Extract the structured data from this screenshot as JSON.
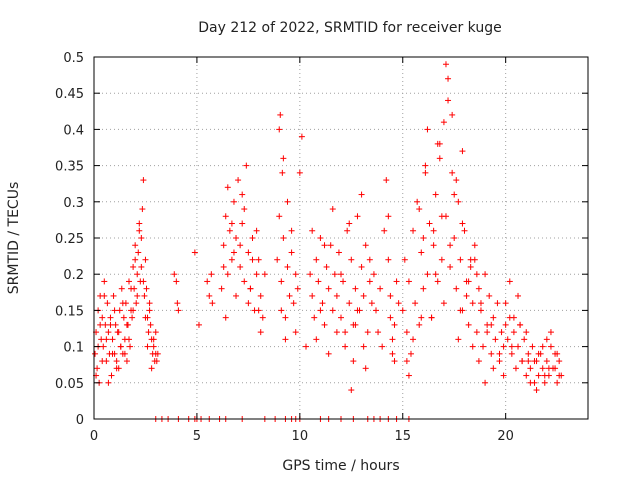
{
  "chart_data": {
    "type": "scatter",
    "title": "Day 212 of 2022, SRMTID for receiver kuge",
    "xlabel": "GPS time / hours",
    "ylabel": "SRMTID / TECUs",
    "xlim": [
      0,
      24
    ],
    "ylim": [
      0,
      0.5
    ],
    "xticks": [
      0,
      5,
      10,
      15,
      20
    ],
    "yticks": [
      0,
      0.05,
      0.1,
      0.15,
      0.2,
      0.25,
      0.3,
      0.35,
      0.4,
      0.45,
      0.5
    ],
    "xtick_labels": [
      "0",
      "5",
      "10",
      "15",
      "20"
    ],
    "ytick_labels": [
      "0",
      "0.05",
      "0.1",
      "0.15",
      "0.2",
      "0.25",
      "0.3",
      "0.35",
      "0.4",
      "0.45",
      "0.5"
    ],
    "grid": true,
    "marker": "+",
    "color": "#ff0000",
    "series": [
      {
        "name": "SRMTID",
        "x": [
          0.05,
          0.1,
          0.15,
          0.2,
          0.25,
          0.3,
          0.35,
          0.4,
          0.45,
          0.5,
          0.55,
          0.6,
          0.65,
          0.7,
          0.75,
          0.8,
          0.85,
          0.9,
          0.95,
          1.0,
          1.05,
          1.1,
          1.15,
          1.2,
          1.25,
          1.3,
          1.35,
          1.4,
          1.45,
          1.5,
          1.55,
          1.6,
          1.65,
          1.7,
          1.75,
          1.8,
          1.85,
          1.9,
          1.95,
          2.0,
          2.05,
          2.1,
          2.15,
          2.2,
          2.25,
          2.3,
          2.35,
          2.4,
          2.45,
          2.5,
          2.55,
          2.6,
          2.65,
          2.7,
          2.75,
          2.8,
          2.85,
          2.9,
          2.95,
          3.0,
          3.05,
          3.1,
          0.1,
          0.2,
          0.3,
          0.4,
          0.5,
          0.6,
          0.7,
          0.8,
          0.9,
          1.0,
          1.1,
          1.2,
          1.3,
          1.4,
          1.5,
          1.6,
          1.7,
          1.8,
          1.9,
          2.0,
          2.1,
          2.2,
          2.3,
          2.4,
          2.5,
          2.6,
          2.7,
          2.8,
          2.9,
          3.0,
          3.9,
          4.0,
          4.05,
          4.1,
          4.9,
          5.1,
          5.5,
          5.6,
          5.7,
          5.75,
          6.2,
          6.3,
          6.4,
          6.5,
          6.6,
          6.7,
          6.8,
          6.9,
          7.0,
          7.1,
          7.2,
          7.3,
          7.4,
          7.5,
          7.6,
          7.7,
          7.8,
          7.9,
          8.0,
          8.1,
          8.2,
          8.3,
          6.3,
          6.5,
          6.7,
          6.9,
          7.1,
          7.3,
          7.5,
          7.7,
          7.9,
          8.1,
          6.4,
          6.8,
          7.2,
          7.6,
          8.0,
          8.9,
          9.0,
          9.1,
          9.2,
          9.3,
          9.4,
          9.5,
          9.6,
          9.7,
          9.8,
          9.9,
          9.0,
          9.2,
          9.4,
          9.6,
          9.8,
          9.1,
          9.3,
          9.05,
          9.15,
          10.0,
          10.1,
          10.3,
          10.5,
          10.6,
          10.7,
          10.8,
          10.9,
          11.0,
          11.1,
          11.2,
          11.3,
          11.4,
          11.5,
          11.6,
          11.7,
          11.8,
          11.9,
          12.0,
          12.1,
          12.2,
          12.3,
          12.4,
          12.5,
          12.6,
          12.7,
          12.8,
          12.9,
          13.0,
          13.1,
          13.2,
          13.3,
          13.4,
          13.5,
          10.6,
          10.8,
          11.0,
          11.2,
          11.4,
          11.6,
          11.8,
          12.0,
          12.2,
          12.4,
          12.6,
          12.8,
          13.0,
          13.2,
          13.4,
          12.5,
          13.1,
          12.7,
          13.6,
          13.7,
          13.8,
          13.9,
          14.0,
          14.1,
          14.2,
          14.3,
          14.4,
          14.5,
          14.6,
          14.7,
          14.8,
          14.3,
          14.5,
          14.4,
          14.6,
          15.0,
          15.1,
          15.2,
          15.3,
          15.4,
          15.5,
          15.6,
          15.7,
          15.8,
          15.9,
          16.0,
          16.1,
          16.2,
          16.3,
          16.4,
          16.5,
          16.6,
          16.7,
          16.8,
          16.9,
          17.0,
          17.1,
          17.2,
          17.3,
          17.4,
          17.5,
          17.6,
          17.7,
          17.8,
          17.9,
          18.0,
          18.1,
          18.2,
          18.3,
          18.4,
          18.5,
          18.6,
          18.7,
          18.8,
          18.9,
          19.0,
          19.1,
          19.2,
          19.3,
          19.4,
          19.5,
          19.6,
          19.7,
          19.8,
          19.9,
          20.0,
          15.2,
          15.5,
          15.8,
          16.1,
          16.4,
          16.7,
          17.0,
          17.3,
          17.6,
          17.9,
          18.2,
          18.5,
          18.8,
          19.1,
          19.4,
          19.7,
          16.2,
          16.8,
          17.1,
          17.2,
          17.4,
          17.9,
          18.3,
          16.5,
          17.5,
          18.6,
          15.3,
          15.9,
          16.6,
          17.7,
          18.1,
          18.7,
          19.3,
          19.9,
          16.0,
          16.9,
          17.8,
          18.4,
          19.0,
          20.0,
          20.1,
          20.2,
          20.3,
          20.4,
          20.5,
          20.6,
          20.7,
          20.8,
          20.9,
          21.0,
          21.1,
          21.2,
          21.3,
          21.4,
          21.5,
          21.6,
          21.7,
          21.8,
          21.9,
          22.0,
          22.1,
          22.2,
          22.3,
          22.4,
          22.5,
          22.6,
          22.7,
          20.2,
          20.6,
          21.0,
          21.4,
          21.8,
          22.2,
          22.6,
          20.4,
          20.8,
          21.2,
          21.6,
          22.0,
          22.4,
          20.3,
          20.7,
          21.5,
          22.1,
          22.5,
          21.1,
          21.9,
          3.0,
          3.3,
          3.6,
          4.1,
          4.6,
          4.9,
          5.0,
          5.2,
          5.6,
          6.1,
          6.4,
          7.2,
          8.3,
          8.8,
          9.3,
          9.6,
          9.8,
          10.0,
          11.0,
          11.4,
          12.0,
          12.6,
          13.3,
          13.6,
          13.9,
          14.3,
          14.7,
          15.3
        ],
        "y": [
          0.09,
          0.12,
          0.07,
          0.15,
          0.05,
          0.17,
          0.11,
          0.14,
          0.1,
          0.19,
          0.13,
          0.08,
          0.16,
          0.12,
          0.09,
          0.14,
          0.06,
          0.11,
          0.17,
          0.09,
          0.13,
          0.08,
          0.12,
          0.07,
          0.15,
          0.1,
          0.18,
          0.09,
          0.14,
          0.11,
          0.16,
          0.08,
          0.13,
          0.19,
          0.1,
          0.15,
          0.14,
          0.21,
          0.18,
          0.24,
          0.16,
          0.2,
          0.23,
          0.27,
          0.19,
          0.25,
          0.29,
          0.33,
          0.17,
          0.22,
          0.18,
          0.14,
          0.12,
          0.16,
          0.13,
          0.11,
          0.09,
          0.1,
          0.08,
          0.12,
          0.08,
          0.09,
          0.06,
          0.1,
          0.13,
          0.08,
          0.17,
          0.11,
          0.05,
          0.13,
          0.09,
          0.15,
          0.07,
          0.12,
          0.1,
          0.16,
          0.09,
          0.13,
          0.11,
          0.18,
          0.15,
          0.22,
          0.17,
          0.26,
          0.21,
          0.19,
          0.14,
          0.1,
          0.15,
          0.07,
          0.11,
          0.09,
          0.2,
          0.19,
          0.16,
          0.15,
          0.23,
          0.13,
          0.19,
          0.17,
          0.2,
          0.16,
          0.18,
          0.24,
          0.28,
          0.2,
          0.26,
          0.22,
          0.3,
          0.25,
          0.33,
          0.21,
          0.27,
          0.19,
          0.35,
          0.23,
          0.18,
          0.25,
          0.15,
          0.2,
          0.22,
          0.17,
          0.14,
          0.2,
          0.21,
          0.32,
          0.27,
          0.17,
          0.24,
          0.29,
          0.16,
          0.22,
          0.26,
          0.12,
          0.14,
          0.23,
          0.31,
          0.18,
          0.15,
          0.22,
          0.28,
          0.19,
          0.25,
          0.14,
          0.21,
          0.17,
          0.23,
          0.16,
          0.2,
          0.18,
          0.4,
          0.36,
          0.3,
          0.26,
          0.12,
          0.15,
          0.11,
          0.42,
          0.34,
          0.34,
          0.39,
          0.1,
          0.2,
          0.17,
          0.14,
          0.22,
          0.19,
          0.25,
          0.16,
          0.13,
          0.21,
          0.18,
          0.24,
          0.15,
          0.2,
          0.17,
          0.23,
          0.14,
          0.19,
          0.12,
          0.26,
          0.16,
          0.22,
          0.13,
          0.18,
          0.28,
          0.15,
          0.21,
          0.17,
          0.24,
          0.12,
          0.19,
          0.16,
          0.26,
          0.11,
          0.15,
          0.24,
          0.09,
          0.29,
          0.12,
          0.2,
          0.1,
          0.27,
          0.08,
          0.15,
          0.31,
          0.07,
          0.22,
          0.04,
          0.1,
          0.13,
          0.2,
          0.15,
          0.12,
          0.18,
          0.1,
          0.26,
          0.33,
          0.22,
          0.17,
          0.09,
          0.13,
          0.19,
          0.16,
          0.28,
          0.11,
          0.14,
          0.08,
          0.15,
          0.22,
          0.12,
          0.19,
          0.09,
          0.26,
          0.16,
          0.3,
          0.13,
          0.23,
          0.18,
          0.35,
          0.2,
          0.27,
          0.14,
          0.24,
          0.31,
          0.19,
          0.38,
          0.22,
          0.16,
          0.28,
          0.44,
          0.21,
          0.34,
          0.25,
          0.18,
          0.3,
          0.22,
          0.15,
          0.26,
          0.19,
          0.13,
          0.21,
          0.16,
          0.24,
          0.12,
          0.18,
          0.15,
          0.1,
          0.2,
          0.13,
          0.17,
          0.09,
          0.14,
          0.11,
          0.16,
          0.08,
          0.12,
          0.1,
          0.13,
          0.08,
          0.11,
          0.29,
          0.34,
          0.14,
          0.38,
          0.41,
          0.24,
          0.33,
          0.27,
          0.19,
          0.22,
          0.16,
          0.12,
          0.07,
          0.09,
          0.4,
          0.36,
          0.49,
          0.47,
          0.42,
          0.37,
          0.22,
          0.26,
          0.31,
          0.2,
          0.06,
          0.14,
          0.2,
          0.11,
          0.17,
          0.08,
          0.13,
          0.06,
          0.25,
          0.28,
          0.15,
          0.1,
          0.05,
          0.16,
          0.11,
          0.14,
          0.09,
          0.12,
          0.07,
          0.1,
          0.13,
          0.08,
          0.11,
          0.06,
          0.09,
          0.07,
          0.1,
          0.05,
          0.08,
          0.06,
          0.09,
          0.07,
          0.05,
          0.08,
          0.06,
          0.1,
          0.07,
          0.09,
          0.05,
          0.08,
          0.06,
          0.19,
          0.17,
          0.12,
          0.08,
          0.1,
          0.12,
          0.06,
          0.14,
          0.08,
          0.05,
          0.09,
          0.11,
          0.07,
          0.1,
          0.13,
          0.04,
          0.07,
          0.09,
          0.08,
          0.06,
          0.0,
          0.0,
          0.0,
          0.0,
          0.0,
          0.0,
          0.0,
          0.0,
          0.0,
          0.0,
          0.0,
          0.0,
          0.0,
          0.0,
          0.0,
          0.0,
          0.0,
          0.0,
          0.0,
          0.0,
          0.0,
          0.0,
          0.0,
          0.0,
          0.0,
          0.0,
          0.0,
          0.0
        ]
      }
    ]
  }
}
